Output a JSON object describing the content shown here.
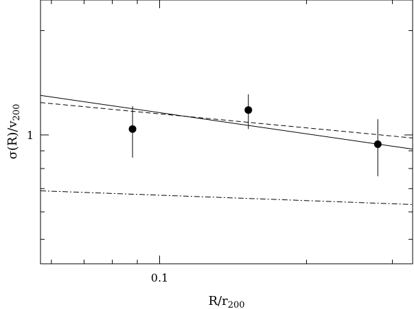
{
  "chart_data": {
    "type": "scatter",
    "title": "",
    "xlabel": {
      "base": "R/r",
      "sub": "200"
    },
    "ylabel": {
      "base": "σ(R)/v",
      "sub": "200"
    },
    "xscale": "log",
    "yscale": "log",
    "xlim": [
      0.057,
      0.33
    ],
    "ylim": [
      0.425,
      2.45
    ],
    "x_tick_labels": [
      {
        "value": 0.1,
        "label": "0.1"
      }
    ],
    "y_tick_labels": [
      {
        "value": 1,
        "label": "1"
      }
    ],
    "x_major_ticks": [
      0.1
    ],
    "x_minor_ticks": [
      0.06,
      0.07,
      0.08,
      0.09,
      0.2,
      0.3
    ],
    "y_major_ticks": [
      1
    ],
    "y_minor_ticks": [
      0.5,
      0.6,
      0.7,
      0.8,
      0.9,
      2
    ],
    "grid": false,
    "legend": "none",
    "series": [
      {
        "style": "points-with-errorbars",
        "points": [
          {
            "x": 0.088,
            "y": 1.04,
            "ylo": 0.86,
            "yhi": 1.21
          },
          {
            "x": 0.152,
            "y": 1.18,
            "ylo": 1.04,
            "yhi": 1.31
          },
          {
            "x": 0.28,
            "y": 0.94,
            "ylo": 0.76,
            "yhi": 1.11
          }
        ]
      },
      {
        "style": "solid",
        "points": [
          {
            "x": 0.057,
            "y": 1.3
          },
          {
            "x": 0.33,
            "y": 0.91
          }
        ]
      },
      {
        "style": "dashed",
        "points": [
          {
            "x": 0.057,
            "y": 1.24
          },
          {
            "x": 0.33,
            "y": 0.98
          }
        ]
      },
      {
        "style": "dash-dot",
        "points": [
          {
            "x": 0.057,
            "y": 0.69
          },
          {
            "x": 0.33,
            "y": 0.63
          }
        ]
      }
    ]
  }
}
